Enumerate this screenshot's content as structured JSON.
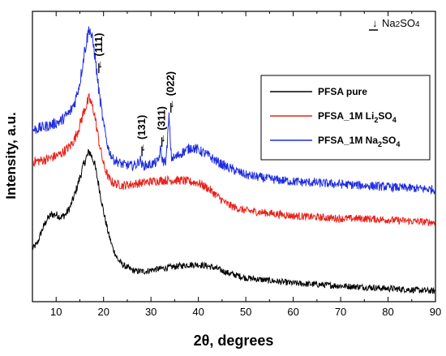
{
  "chart_data": {
    "type": "line",
    "xlabel": "2θ, degrees",
    "ylabel": "Intensity, a.u.",
    "xlim": [
      5,
      90
    ],
    "x_ticks": [
      "10",
      "20",
      "30",
      "40",
      "50",
      "60",
      "70",
      "80",
      "90"
    ],
    "y_ticks": "none",
    "grid": false,
    "legend_position": "top-right",
    "marker_legend": {
      "symbol": "↓",
      "label": "Na2SO4"
    },
    "series": [
      {
        "name": "PFSA pure",
        "color": "#000000",
        "points": [
          [
            5,
            0.2
          ],
          [
            6,
            0.22
          ],
          [
            7,
            0.27
          ],
          [
            8,
            0.31
          ],
          [
            9,
            0.33
          ],
          [
            10,
            0.33
          ],
          [
            11,
            0.32
          ],
          [
            12,
            0.33
          ],
          [
            13,
            0.36
          ],
          [
            14,
            0.41
          ],
          [
            15,
            0.47
          ],
          [
            16,
            0.53
          ],
          [
            17,
            0.57
          ],
          [
            18,
            0.53
          ],
          [
            19,
            0.44
          ],
          [
            20,
            0.34
          ],
          [
            21,
            0.26
          ],
          [
            22,
            0.2
          ],
          [
            23,
            0.16
          ],
          [
            24,
            0.14
          ],
          [
            25,
            0.13
          ],
          [
            26,
            0.12
          ],
          [
            27,
            0.115
          ],
          [
            28,
            0.115
          ],
          [
            29,
            0.115
          ],
          [
            30,
            0.12
          ],
          [
            32,
            0.125
          ],
          [
            34,
            0.13
          ],
          [
            36,
            0.135
          ],
          [
            38,
            0.14
          ],
          [
            40,
            0.14
          ],
          [
            42,
            0.135
          ],
          [
            44,
            0.125
          ],
          [
            46,
            0.11
          ],
          [
            48,
            0.1
          ],
          [
            50,
            0.09
          ],
          [
            55,
            0.08
          ],
          [
            60,
            0.07
          ],
          [
            65,
            0.065
          ],
          [
            70,
            0.06
          ],
          [
            75,
            0.055
          ],
          [
            80,
            0.05
          ],
          [
            85,
            0.045
          ],
          [
            90,
            0.04
          ]
        ]
      },
      {
        "name": "PFSA_1M Li2SO4",
        "name_parts": [
          "PFSA_1M Li",
          "2",
          "SO",
          "4"
        ],
        "color": "#e8221a",
        "points": [
          [
            5,
            0.53
          ],
          [
            7,
            0.535
          ],
          [
            9,
            0.545
          ],
          [
            11,
            0.56
          ],
          [
            13,
            0.59
          ],
          [
            14,
            0.62
          ],
          [
            15,
            0.67
          ],
          [
            16,
            0.73
          ],
          [
            17,
            0.77
          ],
          [
            18,
            0.72
          ],
          [
            19,
            0.61
          ],
          [
            20,
            0.52
          ],
          [
            21,
            0.47
          ],
          [
            22,
            0.45
          ],
          [
            24,
            0.44
          ],
          [
            26,
            0.445
          ],
          [
            28,
            0.45
          ],
          [
            30,
            0.455
          ],
          [
            32,
            0.46
          ],
          [
            34,
            0.46
          ],
          [
            36,
            0.46
          ],
          [
            38,
            0.455
          ],
          [
            40,
            0.45
          ],
          [
            42,
            0.43
          ],
          [
            44,
            0.4
          ],
          [
            46,
            0.37
          ],
          [
            48,
            0.355
          ],
          [
            50,
            0.345
          ],
          [
            55,
            0.335
          ],
          [
            60,
            0.325
          ],
          [
            65,
            0.32
          ],
          [
            70,
            0.315
          ],
          [
            75,
            0.315
          ],
          [
            80,
            0.31
          ],
          [
            85,
            0.305
          ],
          [
            90,
            0.3
          ]
        ]
      },
      {
        "name": "PFSA_1M Na2SO4",
        "name_parts": [
          "PFSA_1M Na",
          "2",
          "SO",
          "4"
        ],
        "color": "#1f2de0",
        "points": [
          [
            5,
            0.65
          ],
          [
            7,
            0.66
          ],
          [
            9,
            0.67
          ],
          [
            11,
            0.685
          ],
          [
            13,
            0.72
          ],
          [
            14,
            0.76
          ],
          [
            15,
            0.83
          ],
          [
            16,
            0.95
          ],
          [
            17,
            1.04
          ],
          [
            18,
            0.96
          ],
          [
            19,
            0.8
          ],
          [
            20,
            0.67
          ],
          [
            21,
            0.58
          ],
          [
            22,
            0.54
          ],
          [
            24,
            0.52
          ],
          [
            26,
            0.515
          ],
          [
            27,
            0.52
          ],
          [
            27.7,
            0.54
          ],
          [
            28.2,
            0.515
          ],
          [
            30,
            0.52
          ],
          [
            31.5,
            0.53
          ],
          [
            32.0,
            0.575
          ],
          [
            32.5,
            0.53
          ],
          [
            33.2,
            0.535
          ],
          [
            33.8,
            0.7
          ],
          [
            34.3,
            0.545
          ],
          [
            35,
            0.545
          ],
          [
            37,
            0.57
          ],
          [
            38.5,
            0.585
          ],
          [
            40,
            0.575
          ],
          [
            42,
            0.555
          ],
          [
            44,
            0.53
          ],
          [
            46,
            0.51
          ],
          [
            48,
            0.495
          ],
          [
            50,
            0.48
          ],
          [
            55,
            0.465
          ],
          [
            60,
            0.455
          ],
          [
            65,
            0.45
          ],
          [
            70,
            0.445
          ],
          [
            75,
            0.44
          ],
          [
            80,
            0.435
          ],
          [
            85,
            0.43
          ],
          [
            90,
            0.425
          ]
        ]
      }
    ],
    "annotations": [
      {
        "label": "(111)",
        "x": 19.0,
        "y": 0.86
      },
      {
        "label": "(131)",
        "x": 28.1,
        "y": 0.545
      },
      {
        "label": "(311)",
        "x": 32.3,
        "y": 0.58
      },
      {
        "label": "(022)",
        "x": 34.2,
        "y": 0.71
      }
    ]
  }
}
